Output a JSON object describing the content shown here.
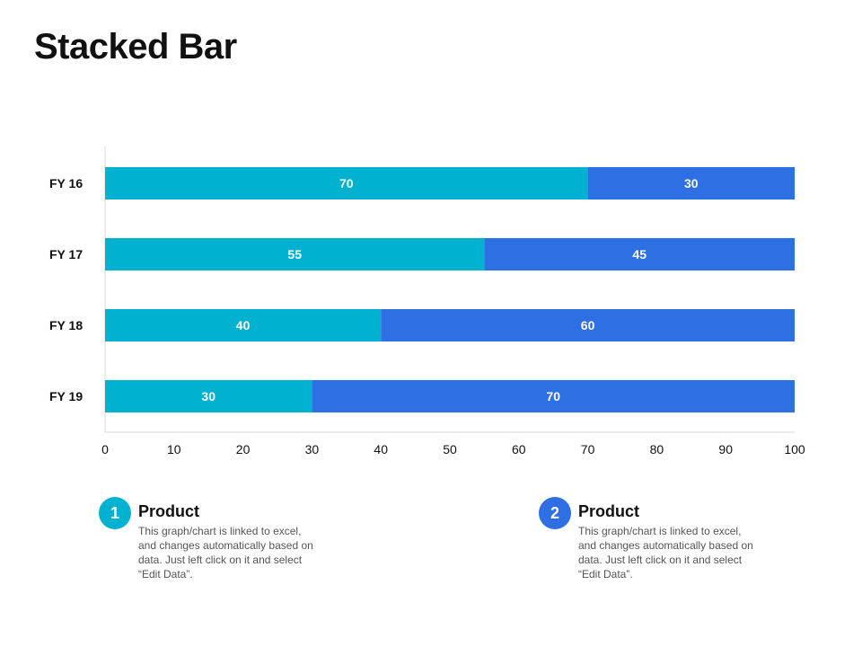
{
  "page": {
    "title": "Stacked Bar"
  },
  "chart_data": {
    "type": "bar",
    "orientation": "horizontal",
    "stacked": true,
    "categories": [
      "FY 16",
      "FY 17",
      "FY 18",
      "FY 19"
    ],
    "series": [
      {
        "name": "Product 1",
        "values": [
          70,
          55,
          40,
          30
        ],
        "color": "#00b2d0"
      },
      {
        "name": "Product 2",
        "values": [
          30,
          45,
          60,
          70
        ],
        "color": "#2f6fe4"
      }
    ],
    "xlim": [
      0,
      100
    ],
    "xticks": [
      0,
      10,
      20,
      30,
      40,
      50,
      60,
      70,
      80,
      90,
      100
    ],
    "title": "Stacked Bar",
    "xlabel": "",
    "ylabel": "",
    "grid": false,
    "data_labels": true
  },
  "legend": [
    {
      "number": "1",
      "title": "Product",
      "description": "This graph/chart is linked to excel, and changes automatically based on data. Just left click on it and select “Edit Data”.",
      "color": "#00b2d0"
    },
    {
      "number": "2",
      "title": "Product",
      "description": "This graph/chart is linked to excel, and changes automatically based on data. Just left click on it and select “Edit Data”.",
      "color": "#2f6fe4"
    }
  ]
}
